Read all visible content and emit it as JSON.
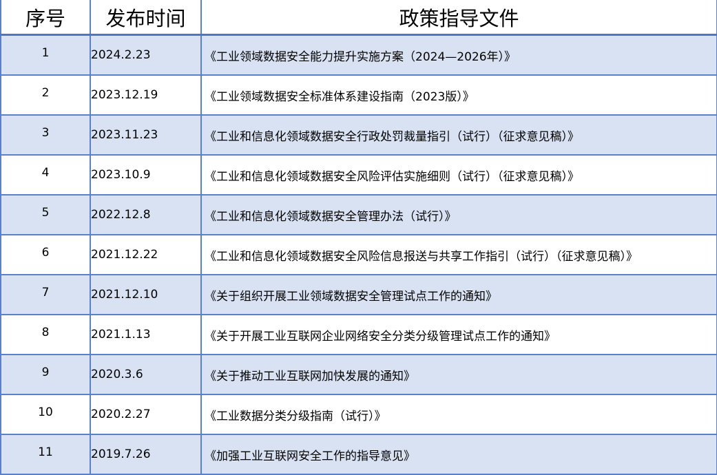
{
  "table": {
    "headers": [
      "序号",
      "发布时间",
      "政策指导文件"
    ],
    "rows": [
      {
        "no": "1",
        "date": "2024.2.23",
        "doc": "《工业领域数据安全能力提升实施方案（2024—2026年）》"
      },
      {
        "no": "2",
        "date": "2023.12.19",
        "doc": "《工业领域数据安全标准体系建设指南（2023版）》"
      },
      {
        "no": "3",
        "date": "2023.11.23",
        "doc": "《工业和信息化领域数据安全行政处罚裁量指引（试行）（征求意见稿）》"
      },
      {
        "no": "4",
        "date": "2023.10.9",
        "doc": "《工业和信息化领域数据安全风险评估实施细则（试行）（征求意见稿）》"
      },
      {
        "no": "5",
        "date": "2022.12.8",
        "doc": "《工业和信息化领域数据安全管理办法（试行）》"
      },
      {
        "no": "6",
        "date": "2021.12.22",
        "doc": "《工业和信息化领域数据安全风险信息报送与共享工作指引（试行）（征求意见稿）》"
      },
      {
        "no": "7",
        "date": "2021.12.10",
        "doc": "《关于组织开展工业领域数据安全管理试点工作的通知》"
      },
      {
        "no": "8",
        "date": "2021.1.13",
        "doc": "《关于开展工业互联网企业网络安全分类分级管理试点工作的通知》"
      },
      {
        "no": "9",
        "date": "2020.3.6",
        "doc": "《关于推动工业互联网加快发展的通知》"
      },
      {
        "no": "10",
        "date": "2020.2.27",
        "doc": "《工业数据分类分级指南（试行）》"
      },
      {
        "no": "11",
        "date": "2019.7.26",
        "doc": "《加强工业互联网安全工作的指导意见》"
      }
    ]
  },
  "colors": {
    "border": "#5B80CB",
    "shade": "#D9E2F3"
  }
}
